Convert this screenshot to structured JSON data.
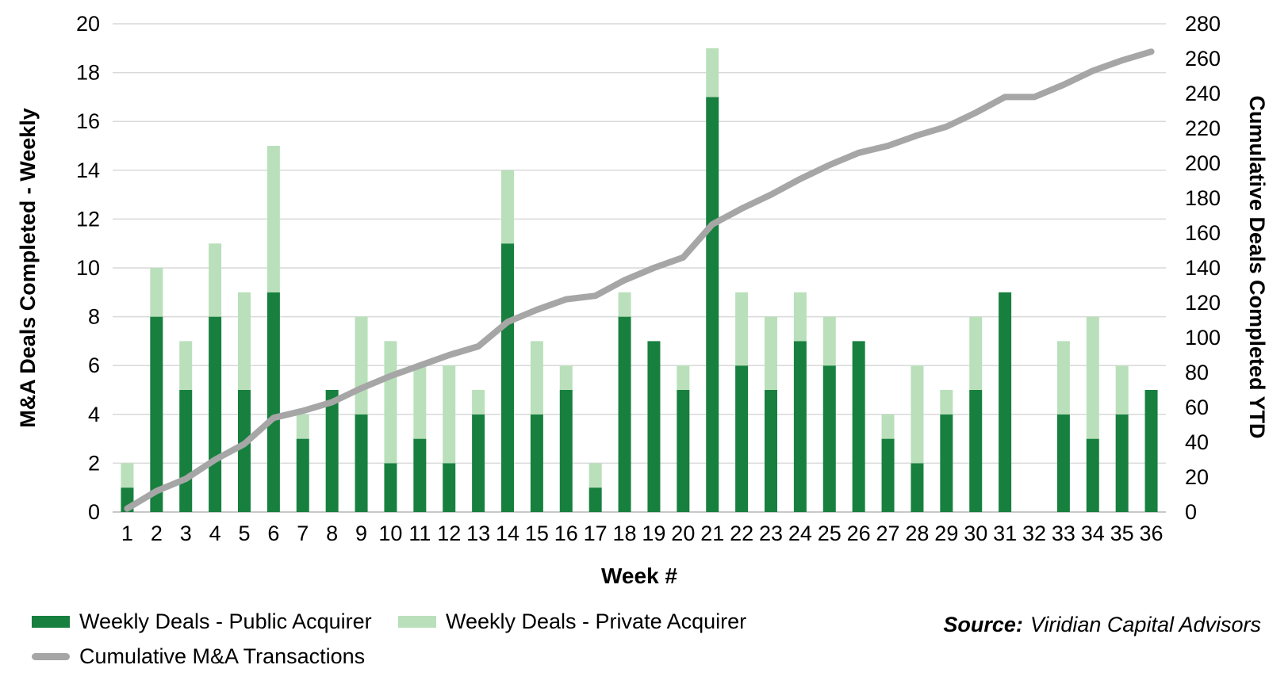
{
  "chart_data": {
    "type": "bar+line",
    "title": "",
    "categories": [
      "1",
      "2",
      "3",
      "4",
      "5",
      "6",
      "7",
      "8",
      "9",
      "10",
      "11",
      "12",
      "13",
      "14",
      "15",
      "16",
      "17",
      "18",
      "19",
      "20",
      "21",
      "22",
      "23",
      "24",
      "25",
      "26",
      "27",
      "28",
      "29",
      "30",
      "31",
      "32",
      "33",
      "34",
      "35",
      "36"
    ],
    "xlabel": "Week #",
    "y_left": {
      "label": "M&A Deals Completed - Weekly",
      "min": 0,
      "max": 20,
      "step": 2,
      "ticks": [
        0,
        2,
        4,
        6,
        8,
        10,
        12,
        14,
        16,
        18,
        20
      ]
    },
    "y_right": {
      "label": "Cumulative Deals Completed YTD",
      "min": 0,
      "max": 280,
      "step": 20,
      "ticks": [
        0,
        20,
        40,
        60,
        80,
        100,
        120,
        140,
        160,
        180,
        200,
        220,
        240,
        260,
        280
      ]
    },
    "grid": true,
    "legend_position": "bottom-left",
    "series": [
      {
        "name": "Weekly Deals - Public Acquirer",
        "type": "bar",
        "stack": "weekly",
        "axis": "left",
        "color": "#17803E",
        "values": [
          1,
          8,
          5,
          8,
          5,
          9,
          3,
          5,
          4,
          2,
          3,
          2,
          4,
          11,
          4,
          5,
          1,
          8,
          7,
          5,
          17,
          6,
          5,
          7,
          6,
          7,
          3,
          2,
          4,
          5,
          9,
          0,
          4,
          3,
          4,
          5
        ]
      },
      {
        "name": "Weekly Deals - Private Acquirer",
        "type": "bar",
        "stack": "weekly",
        "axis": "left",
        "color": "#B9E0BA",
        "values": [
          1,
          2,
          2,
          3,
          4,
          6,
          1,
          0,
          4,
          5,
          3,
          4,
          1,
          3,
          3,
          1,
          1,
          1,
          0,
          1,
          2,
          3,
          3,
          2,
          2,
          0,
          1,
          4,
          1,
          3,
          0,
          0,
          3,
          5,
          2,
          0
        ]
      },
      {
        "name": "Cumulative M&A Transactions",
        "type": "line",
        "axis": "right",
        "color": "#A6A6A6",
        "values": [
          2,
          12,
          19,
          30,
          39,
          54,
          58,
          63,
          71,
          78,
          84,
          90,
          95,
          109,
          116,
          122,
          124,
          133,
          140,
          146,
          165,
          174,
          182,
          191,
          199,
          206,
          210,
          216,
          221,
          229,
          238,
          238,
          245,
          253,
          259,
          264
        ]
      }
    ]
  },
  "source": {
    "prefix": "Source:",
    "text": "Viridian Capital Advisors"
  },
  "colors": {
    "gridline": "#D9D9D9",
    "axis_line": "#C8C8C8",
    "background": "#FFFFFF",
    "text": "#000000"
  }
}
